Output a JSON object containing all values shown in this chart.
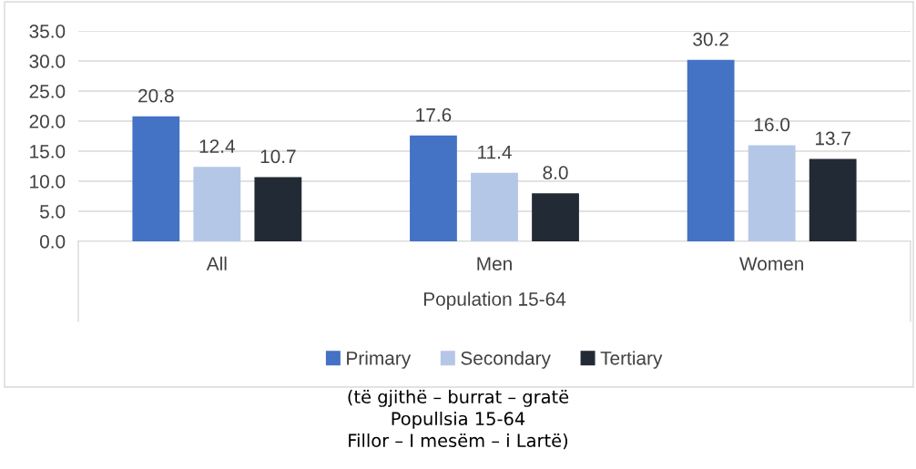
{
  "chart_data": {
    "type": "bar",
    "xlabel": "Population 15-64",
    "categories": [
      "All",
      "Men",
      "Women"
    ],
    "series": [
      {
        "name": "Primary",
        "color": "#4472c4",
        "values": [
          20.8,
          17.6,
          30.2
        ],
        "value_labels": [
          "20.8",
          "17.6",
          "30.2"
        ]
      },
      {
        "name": "Secondary",
        "color": "#b4c7e7",
        "values": [
          12.4,
          11.4,
          16.0
        ],
        "value_labels": [
          "12.4",
          "11.4",
          "16.0"
        ]
      },
      {
        "name": "Tertiary",
        "color": "#222a35",
        "values": [
          10.7,
          8.0,
          13.7
        ],
        "value_labels": [
          "10.7",
          "8.0",
          "13.7"
        ]
      }
    ],
    "ylim": [
      0,
      35
    ],
    "yticks": [
      {
        "value": 0,
        "label": "0.0"
      },
      {
        "value": 5,
        "label": "5.0"
      },
      {
        "value": 10,
        "label": "10.0"
      },
      {
        "value": 15,
        "label": "15.0"
      },
      {
        "value": 20,
        "label": "20.0"
      },
      {
        "value": 25,
        "label": "25.0"
      },
      {
        "value": 30,
        "label": "30.0"
      },
      {
        "value": 35,
        "label": "35.0"
      }
    ],
    "grid": "y",
    "legend": "bottom",
    "annotations": [
      "(të gjithë – burrat – gratë\nPopullsia 15-64\nFillor – I mesëm – i Lartë)"
    ]
  }
}
